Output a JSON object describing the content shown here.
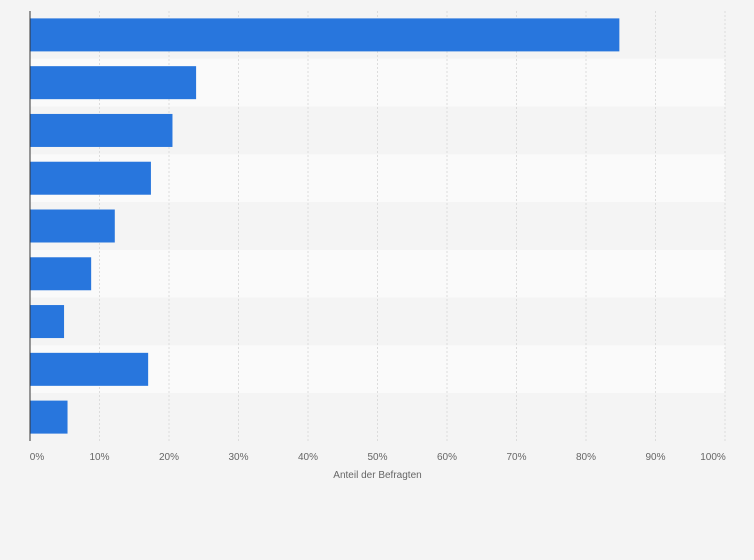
{
  "chart_data": {
    "type": "bar",
    "orientation": "horizontal",
    "categories": [
      "",
      "",
      "",
      "",
      "",
      "",
      "",
      "",
      ""
    ],
    "values": [
      84.8,
      23.9,
      20.5,
      17.4,
      12.2,
      8.8,
      4.9,
      17.0,
      5.4
    ],
    "xlabel": "Anteil der Befragten",
    "ylabel": "",
    "xlim": [
      0,
      100
    ],
    "x_ticks": [
      0,
      10,
      20,
      30,
      40,
      50,
      60,
      70,
      80,
      90,
      100
    ],
    "x_tick_labels": [
      "0%",
      "10%",
      "20%",
      "30%",
      "40%",
      "50%",
      "60%",
      "70%",
      "80%",
      "90%",
      "100%"
    ],
    "grid": true,
    "legend": "none",
    "bar_color": "#2876dd",
    "band_colors": [
      "#f4f4f4",
      "#fafafa"
    ],
    "grid_color": "#dcdcdc",
    "axis_color": "#333333"
  }
}
